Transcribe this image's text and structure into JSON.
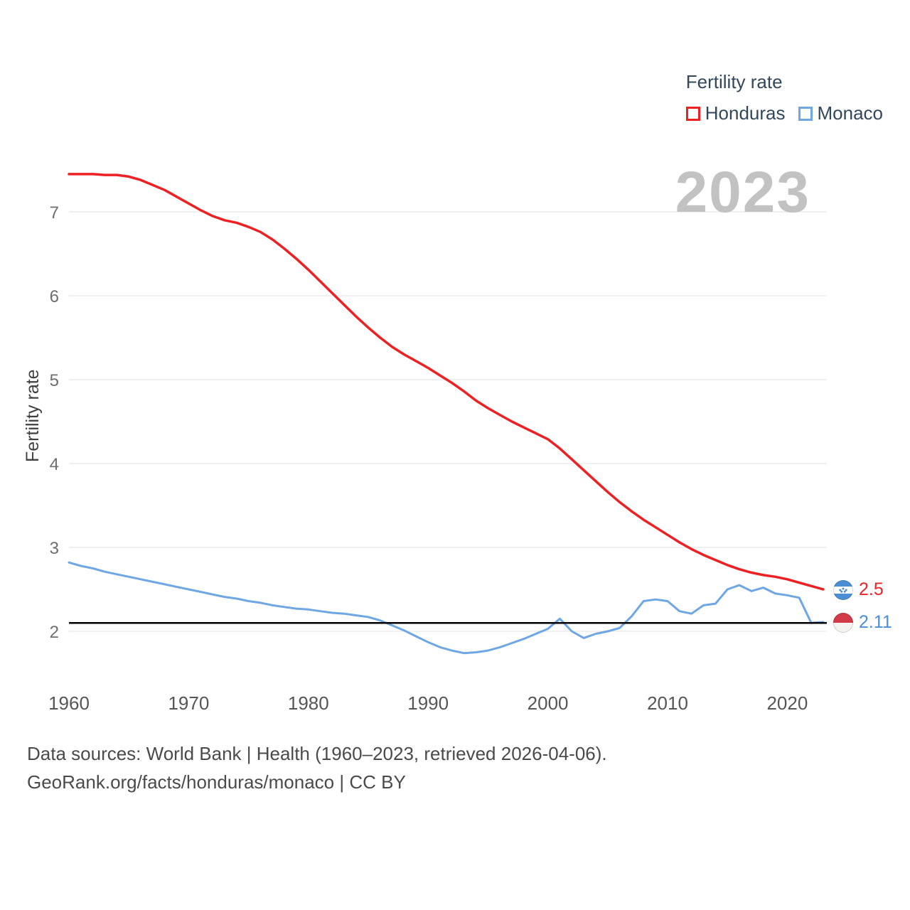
{
  "page": {
    "background": "#ffffff"
  },
  "legend": {
    "title": "Fertility rate",
    "items": [
      {
        "label": "Honduras",
        "color": "#ed2124"
      },
      {
        "label": "Monaco",
        "color": "#6ea7e3"
      }
    ]
  },
  "watermark": "2023",
  "chart_data": {
    "type": "line",
    "title": "Fertility rate",
    "xlabel": "",
    "ylabel": "Fertility rate",
    "grid": "horizontal",
    "legend_position": "top-right",
    "xlim": [
      1960,
      2023
    ],
    "ylim": [
      1.6,
      7.5
    ],
    "x_ticks": [
      1960,
      1970,
      1980,
      1990,
      2000,
      2010,
      2020
    ],
    "y_ticks": [
      2,
      3,
      4,
      5,
      6,
      7
    ],
    "reference_line": {
      "value": 2.1,
      "color": "#000000"
    },
    "x": [
      1960,
      1961,
      1962,
      1963,
      1964,
      1965,
      1966,
      1967,
      1968,
      1969,
      1970,
      1971,
      1972,
      1973,
      1974,
      1975,
      1976,
      1977,
      1978,
      1979,
      1980,
      1981,
      1982,
      1983,
      1984,
      1985,
      1986,
      1987,
      1988,
      1989,
      1990,
      1991,
      1992,
      1993,
      1994,
      1995,
      1996,
      1997,
      1998,
      1999,
      2000,
      2001,
      2002,
      2003,
      2004,
      2005,
      2006,
      2007,
      2008,
      2009,
      2010,
      2011,
      2012,
      2013,
      2014,
      2015,
      2016,
      2017,
      2018,
      2019,
      2020,
      2021,
      2022,
      2023
    ],
    "series": [
      {
        "name": "Honduras",
        "color": "#ed2124",
        "label_color": "#e82329",
        "end_label": "2.5",
        "values": [
          7.45,
          7.45,
          7.45,
          7.44,
          7.44,
          7.42,
          7.38,
          7.32,
          7.26,
          7.18,
          7.1,
          7.02,
          6.95,
          6.9,
          6.87,
          6.82,
          6.76,
          6.67,
          6.56,
          6.44,
          6.31,
          6.17,
          6.03,
          5.89,
          5.75,
          5.62,
          5.5,
          5.39,
          5.3,
          5.22,
          5.14,
          5.05,
          4.96,
          4.86,
          4.75,
          4.66,
          4.58,
          4.5,
          4.43,
          4.36,
          4.29,
          4.18,
          4.05,
          3.92,
          3.79,
          3.66,
          3.54,
          3.43,
          3.33,
          3.24,
          3.15,
          3.06,
          2.98,
          2.91,
          2.85,
          2.79,
          2.74,
          2.7,
          2.67,
          2.65,
          2.62,
          2.58,
          2.54,
          2.5
        ]
      },
      {
        "name": "Monaco",
        "color": "#6ea7e3",
        "label_color": "#4a90d9",
        "end_label": "2.11",
        "values": [
          2.82,
          2.78,
          2.75,
          2.71,
          2.68,
          2.65,
          2.62,
          2.59,
          2.56,
          2.53,
          2.5,
          2.47,
          2.44,
          2.41,
          2.39,
          2.36,
          2.34,
          2.31,
          2.29,
          2.27,
          2.26,
          2.24,
          2.22,
          2.21,
          2.19,
          2.17,
          2.13,
          2.07,
          2.01,
          1.94,
          1.87,
          1.81,
          1.77,
          1.74,
          1.75,
          1.77,
          1.81,
          1.86,
          1.91,
          1.97,
          2.03,
          2.15,
          2.0,
          1.92,
          1.97,
          2.0,
          2.04,
          2.18,
          2.36,
          2.38,
          2.36,
          2.24,
          2.21,
          2.31,
          2.33,
          2.5,
          2.55,
          2.48,
          2.52,
          2.45,
          2.43,
          2.4,
          2.1,
          2.11
        ]
      }
    ]
  },
  "footer": {
    "line1": "Data sources: World Bank | Health (1960–2023, retrieved 2026-04-06).",
    "line2": "GeoRank.org/facts/honduras/monaco | CC BY"
  }
}
